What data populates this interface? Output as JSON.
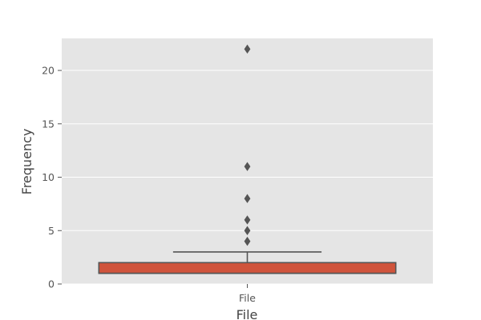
{
  "chart_data": {
    "type": "box",
    "title": "",
    "xlabel": "File",
    "ylabel": "Frequency",
    "categories": [
      "File"
    ],
    "ylim": [
      0,
      23
    ],
    "yticks": [
      0,
      5,
      10,
      15,
      20
    ],
    "grid": true,
    "boxes": [
      {
        "category": "File",
        "whisker_low": 1,
        "q1": 1,
        "median": 1,
        "q3": 2,
        "whisker_high": 3,
        "outliers": [
          4,
          5,
          6,
          8,
          11,
          22
        ],
        "color": "#E24A33"
      }
    ]
  },
  "colors": {
    "plot_background": "#E5E5E5",
    "grid": "#FFFFFF",
    "box_fill": "#D0543C",
    "box_edge": "#555555",
    "tick_text": "#555555"
  }
}
